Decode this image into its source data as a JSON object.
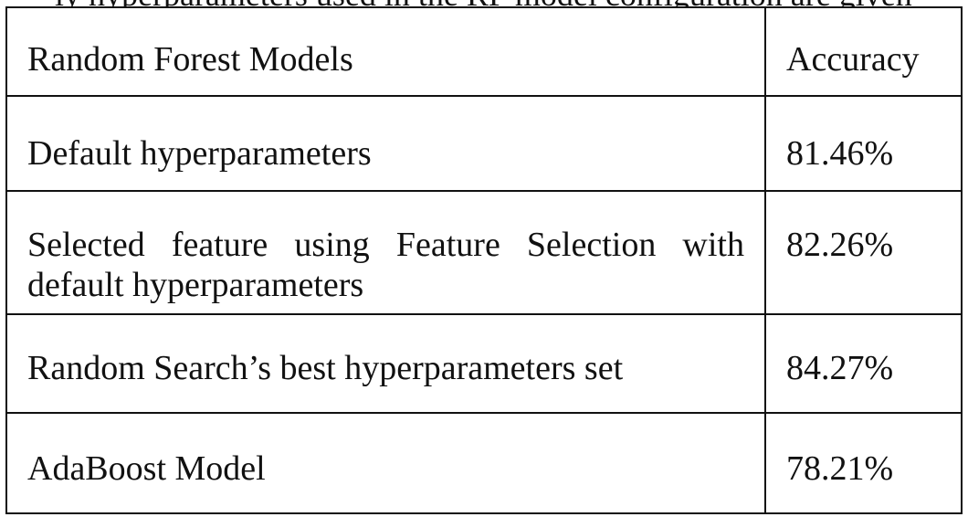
{
  "top_cutoff_text": "ly hyperparameters used in the RF model configuration are given",
  "table": {
    "headers": [
      "Random Forest Models",
      "Accuracy"
    ],
    "rows": [
      {
        "model": "Default hyperparameters",
        "accuracy": "81.46%"
      },
      {
        "model": "Selected feature using Feature Selection with default hyperparameters",
        "accuracy": "82.26%"
      },
      {
        "model": "Random Search’s best hyperparameters set",
        "accuracy": "84.27%"
      },
      {
        "model": "AdaBoost Model",
        "accuracy": "78.21%"
      }
    ]
  }
}
